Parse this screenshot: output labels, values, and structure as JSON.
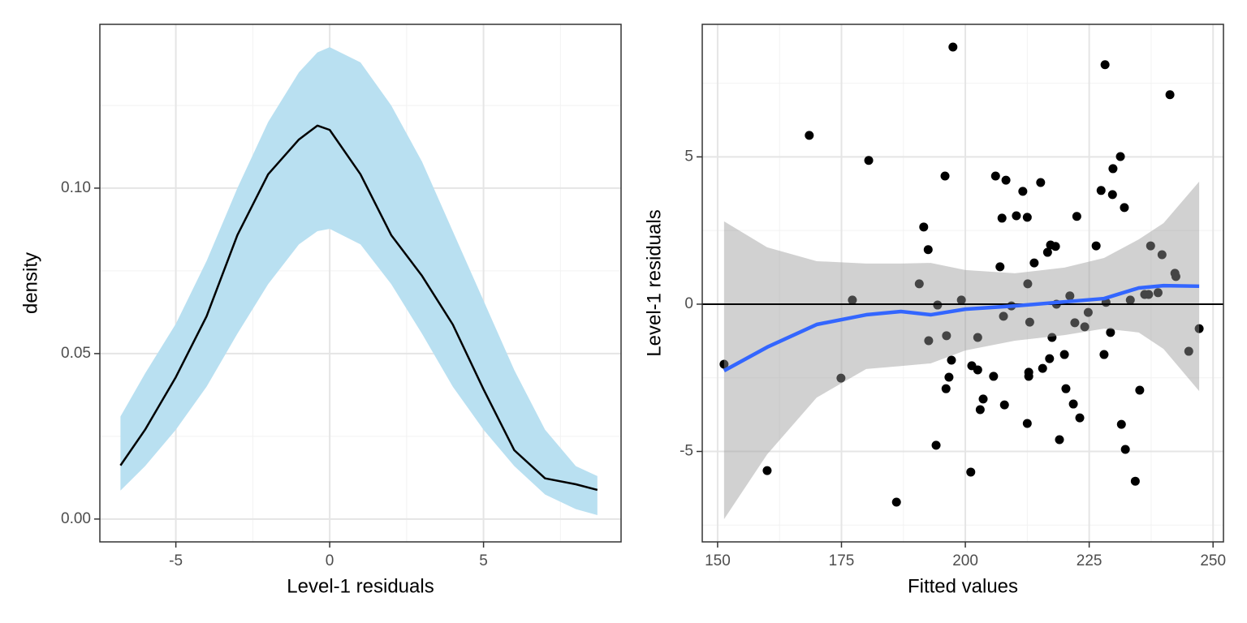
{
  "chart_data": [
    {
      "type": "density",
      "x_label": "Level-1 residuals",
      "y_label": "density",
      "x": [
        -6.8,
        -6,
        -5,
        -4,
        -3,
        -2,
        -1,
        -0.4,
        0,
        1,
        2,
        3,
        4,
        5,
        6,
        7,
        8,
        8.7
      ],
      "values": [
        0.0162,
        0.027,
        0.0429,
        0.0613,
        0.0858,
        0.1042,
        0.1147,
        0.1189,
        0.1176,
        0.1042,
        0.0858,
        0.0735,
        0.0588,
        0.0392,
        0.0208,
        0.0123,
        0.0105,
        0.0088
      ],
      "lower": [
        0.0086,
        0.016,
        0.027,
        0.04,
        0.056,
        0.071,
        0.083,
        0.087,
        0.0877,
        0.083,
        0.071,
        0.056,
        0.04,
        0.027,
        0.016,
        0.0074,
        0.003,
        0.0012
      ],
      "upper": [
        0.031,
        0.044,
        0.059,
        0.078,
        0.1,
        0.12,
        0.135,
        0.141,
        0.1426,
        0.138,
        0.125,
        0.108,
        0.087,
        0.066,
        0.045,
        0.027,
        0.016,
        0.013
      ],
      "line_color": "#000000",
      "band_color": "#b9e0f1",
      "band_alpha": 1,
      "xlim": [
        -7.47,
        9.47
      ],
      "ylim": [
        -0.0069,
        0.1495
      ],
      "xticks": [
        -5,
        0,
        5
      ],
      "yticks": [
        {
          "value": 0,
          "label": "0.00"
        },
        {
          "value": 0.05,
          "label": "0.05"
        },
        {
          "value": 0.1,
          "label": "0.10"
        }
      ],
      "minor_xticks": [
        -7.5,
        -2.5,
        2.5,
        7.5
      ],
      "minor_yticks": [
        0.025,
        0.075,
        0.125
      ],
      "grid": true
    },
    {
      "type": "scatter",
      "x_label": "Fitted values",
      "y_label": "Level-1 residuals",
      "x": [
        151.3,
        160.0,
        168.5,
        174.9,
        177.2,
        180.5,
        186.1,
        190.7,
        191.6,
        192.5,
        192.6,
        194.1,
        194.4,
        195.9,
        196.2,
        196.1,
        196.7,
        197.2,
        197.5,
        199.2,
        201.1,
        201.3,
        202.5,
        202.5,
        203.0,
        203.6,
        205.7,
        206.1,
        207.0,
        207.4,
        207.7,
        207.9,
        208.2,
        209.3,
        210.3,
        211.6,
        212.5,
        212.5,
        212.6,
        212.8,
        212.8,
        213.0,
        213.9,
        215.2,
        215.6,
        216.6,
        217.0,
        217.2,
        217.5,
        218.2,
        218.4,
        219.0,
        220.0,
        220.3,
        221.1,
        221.8,
        222.1,
        222.5,
        223.1,
        224.1,
        224.8,
        226.4,
        227.4,
        228.0,
        228.2,
        228.4,
        229.3,
        229.7,
        229.8,
        231.3,
        231.5,
        232.1,
        232.3,
        233.3,
        234.3,
        235.2,
        236.2,
        237.0,
        237.4,
        238.9,
        239.7,
        241.3,
        242.3,
        242.5,
        245.1,
        247.2
      ],
      "values": [
        -2.04,
        -5.65,
        5.73,
        -2.51,
        0.14,
        4.88,
        -6.72,
        0.69,
        2.62,
        1.85,
        -1.24,
        -4.79,
        -0.03,
        4.35,
        -1.07,
        -2.87,
        -2.48,
        -1.9,
        8.73,
        0.14,
        -5.7,
        -2.09,
        -2.23,
        -1.13,
        -3.58,
        -3.22,
        -2.45,
        4.35,
        1.27,
        2.92,
        -0.41,
        -3.42,
        4.21,
        -0.06,
        3.0,
        3.83,
        -4.05,
        2.95,
        0.69,
        -2.31,
        -2.45,
        -0.61,
        1.4,
        4.13,
        -2.18,
        1.76,
        -1.85,
        2.01,
        -1.13,
        1.96,
        0.0,
        -4.6,
        -1.71,
        -2.87,
        0.28,
        -3.39,
        -0.63,
        2.98,
        -3.86,
        -0.77,
        -0.28,
        1.98,
        3.86,
        -1.71,
        8.13,
        0.06,
        -0.96,
        3.72,
        4.6,
        5.01,
        -4.08,
        3.28,
        -4.93,
        0.14,
        -6.01,
        -2.92,
        0.33,
        0.33,
        1.98,
        0.39,
        1.68,
        7.11,
        1.05,
        0.94,
        -1.6,
        -0.83
      ],
      "point_color": "#000000",
      "smooth": {
        "x": [
          151.3,
          160,
          170,
          180,
          187,
          193,
          200,
          210,
          220,
          228,
          235,
          240,
          247.2
        ],
        "values": [
          -2.26,
          -1.46,
          -0.69,
          -0.36,
          -0.25,
          -0.36,
          -0.17,
          -0.06,
          0.08,
          0.19,
          0.55,
          0.63,
          0.61
        ],
        "lower": [
          -7.3,
          -5.1,
          -3.17,
          -2.2,
          -2.1,
          -2.01,
          -1.57,
          -1.24,
          -1.05,
          -0.83,
          -0.96,
          -1.52,
          -2.95
        ],
        "upper": [
          2.81,
          1.93,
          1.46,
          1.38,
          1.38,
          1.4,
          1.16,
          1.05,
          1.24,
          1.57,
          2.2,
          2.75,
          4.16
        ],
        "color": "#3366ff",
        "band_color": "#999999",
        "band_alpha": 0.45
      },
      "hline": 0,
      "hline_color": "#000000",
      "xlim": [
        146.9,
        252.1
      ],
      "ylim": [
        -8.07,
        9.5
      ],
      "xticks": [
        150,
        175,
        200,
        225,
        250
      ],
      "yticks": [
        -5,
        0,
        5
      ],
      "minor_xticks": [
        162.5,
        187.5,
        212.5,
        237.5
      ],
      "minor_yticks": [
        -7.5,
        -2.5,
        2.5,
        7.5
      ],
      "grid": true
    }
  ]
}
